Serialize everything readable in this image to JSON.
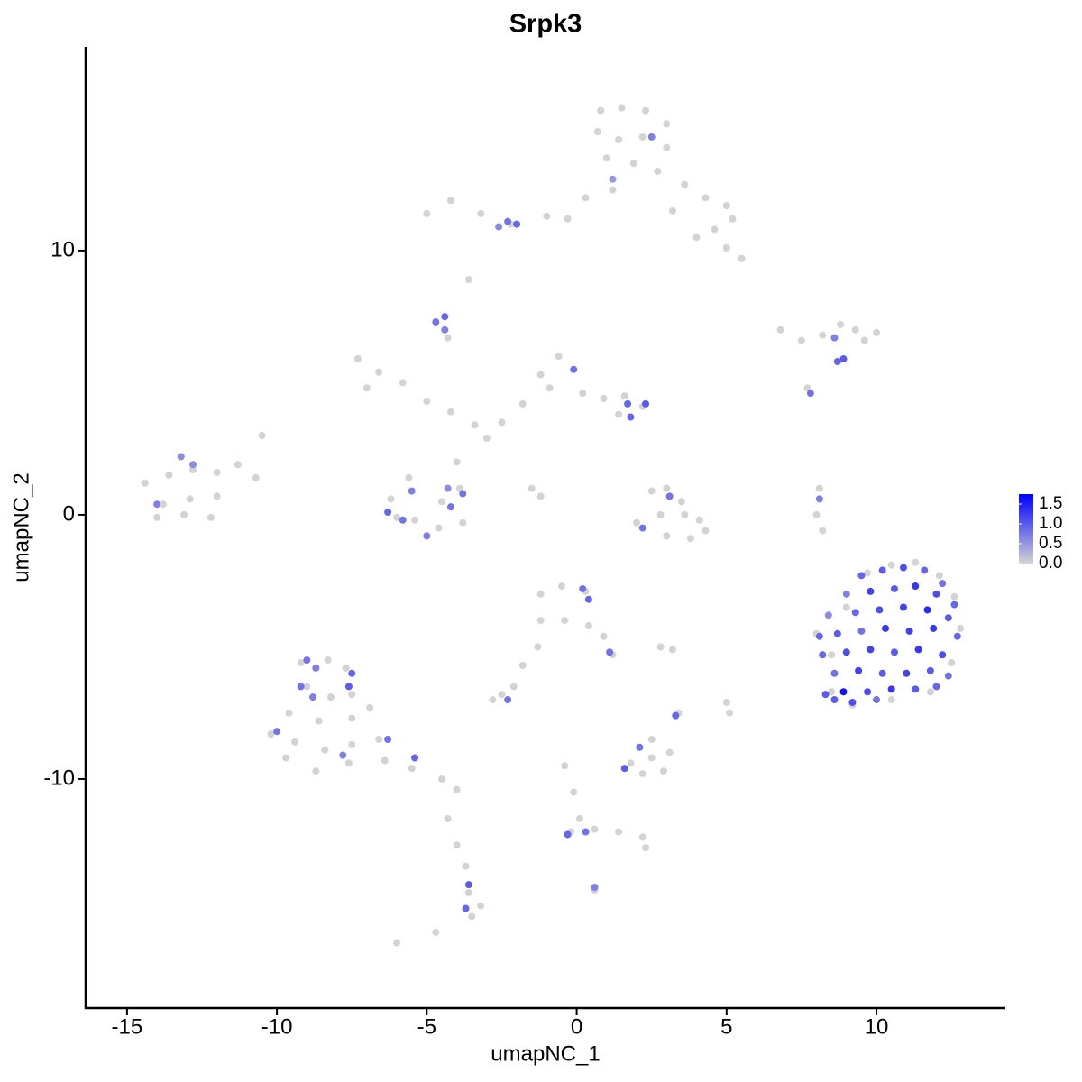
{
  "chart_data": {
    "type": "scatter",
    "title": "Srpk3",
    "xlabel": "umapNC_1",
    "ylabel": "umapNC_2",
    "xlim": [
      -16.38,
      14.3
    ],
    "ylim": [
      -18.67,
      17.71
    ],
    "xticks": [
      -15,
      -10,
      -5,
      0,
      5,
      10
    ],
    "yticks": [
      -10,
      0,
      10
    ],
    "low_color": "#d3d3d3",
    "high_color": "#0000ff",
    "clim": [
      0,
      1.75
    ],
    "cticks": [
      {
        "value": 0,
        "label": "0.0"
      },
      0.5,
      {
        "value": 1,
        "label": "1.0"
      },
      1.5
    ],
    "series": [
      {
        "x": [
          0.8,
          1.5,
          2.3,
          3.0,
          0.7,
          1.4,
          2.2,
          3.0,
          1.0,
          1.9,
          2.7,
          3.6,
          4.3,
          5.0,
          5.2,
          4.6,
          5.0,
          5.5,
          4.0,
          1.2,
          0.3,
          -1.0,
          -2.2,
          -3.2,
          -4.2,
          -5.0,
          3.2,
          -0.3,
          -3.6,
          -7.3,
          -6.6,
          -5.8,
          -7.0,
          -5.0,
          -4.2,
          -3.4,
          -3.0,
          -2.5,
          -1.8,
          -1.2,
          -0.6,
          -0.9,
          0.2,
          0.9,
          1.6,
          2.2,
          1.4,
          -4.3,
          -4.0,
          -3.9,
          -5.6,
          -6.2,
          -5.4,
          -4.6,
          -3.8,
          -4.5,
          -6.0,
          -1.5,
          -1.2,
          -14.4,
          -13.6,
          -12.8,
          -12.0,
          -11.3,
          -10.7,
          -13.8,
          -12.9,
          -12.0,
          -14.0,
          -13.1,
          -12.2,
          -10.5,
          2.5,
          3.0,
          3.5,
          2.8,
          3.6,
          4.1,
          2.0,
          3.0,
          3.8,
          4.3,
          6.8,
          7.5,
          8.2,
          8.8,
          9.3,
          10.0,
          9.6,
          7.7,
          8.1,
          8.0,
          8.2,
          8.0,
          8.5,
          9.0,
          9.7,
          10.5,
          11.3,
          12.1,
          12.6,
          12.8,
          12.5,
          11.8,
          10.5,
          9.2,
          8.5,
          -1.2,
          -0.5,
          0.3,
          -1.2,
          -0.4,
          0.4,
          0.9,
          1.2,
          -1.3,
          -1.8,
          -2.1,
          -2.5,
          -2.8,
          -9.2,
          -8.3,
          -7.7,
          -9.0,
          -8.2,
          -7.5,
          -9.6,
          -8.6,
          -7.5,
          -6.9,
          -10.2,
          -9.4,
          -8.4,
          -7.5,
          -6.6,
          -9.7,
          -8.7,
          -7.6,
          -6.4,
          -5.5,
          -4.5,
          -4.0,
          -4.3,
          -4.0,
          -3.7,
          -3.6,
          -3.2,
          -3.5,
          -6.0,
          -4.7,
          1.8,
          2.5,
          3.1,
          2.2,
          2.9,
          3.4,
          5.0,
          5.1,
          2.5,
          -0.4,
          -0.1,
          0.1,
          -0.2,
          0.6,
          1.4,
          2.2,
          2.3,
          0.6,
          2.8,
          3.2,
          2.5,
          1.2,
          -2.0,
          -2.3,
          -2.6,
          -4.4,
          -4.7,
          -4.4,
          -0.1,
          1.7,
          2.3,
          1.8,
          -5.5,
          -4.3,
          -3.8,
          -6.3,
          -5.8,
          -5.0,
          -4.2,
          -14.0,
          -13.2,
          -12.8,
          3.1,
          2.2,
          8.6,
          8.9,
          8.7,
          7.8,
          8.1,
          0.2,
          0.4,
          1.1,
          -2.3,
          -9.0,
          -8.7,
          -7.5,
          -7.6,
          -9.2,
          -8.8,
          -10.0,
          -7.8,
          -6.3,
          -5.4,
          -3.6,
          -3.7,
          0.3,
          -0.3,
          1.6,
          2.1,
          3.3,
          0.6,
          9.5,
          10.2,
          10.9,
          11.6,
          12.2,
          9.0,
          9.8,
          10.6,
          11.3,
          12.0,
          12.6,
          8.4,
          9.3,
          10.1,
          10.9,
          11.7,
          12.4,
          8.1,
          8.7,
          9.5,
          10.3,
          11.1,
          11.9,
          12.7,
          8.2,
          9.0,
          9.8,
          10.6,
          11.4,
          12.2,
          8.6,
          9.4,
          10.2,
          11.0,
          11.8,
          12.4,
          8.3,
          9.7,
          10.5,
          11.3,
          12.0,
          8.6,
          9.2,
          10.0,
          8.9
        ],
        "y": [
          15.3,
          15.4,
          15.3,
          14.8,
          14.5,
          14.2,
          14.3,
          13.9,
          13.5,
          13.3,
          13.0,
          12.5,
          12.0,
          11.7,
          11.2,
          10.8,
          10.1,
          9.7,
          10.5,
          12.3,
          12.0,
          11.3,
          11.0,
          11.4,
          11.9,
          11.4,
          11.5,
          11.2,
          8.9,
          5.9,
          5.4,
          5.0,
          4.8,
          4.3,
          3.9,
          3.4,
          2.9,
          3.5,
          4.2,
          5.3,
          6.0,
          4.8,
          4.6,
          4.4,
          4.5,
          4.1,
          3.8,
          6.7,
          2.0,
          1.0,
          1.4,
          0.6,
          -0.2,
          -0.5,
          -0.3,
          0.5,
          -0.1,
          1.0,
          0.7,
          1.2,
          1.5,
          1.7,
          1.6,
          1.9,
          1.4,
          0.4,
          0.6,
          0.7,
          -0.1,
          0.0,
          -0.1,
          3.0,
          0.9,
          1.0,
          0.5,
          0.0,
          0.0,
          -0.2,
          -0.3,
          -0.8,
          -0.9,
          -0.6,
          7.0,
          6.6,
          6.8,
          7.2,
          7.0,
          6.9,
          6.6,
          4.8,
          1.0,
          0.0,
          -0.6,
          -4.5,
          -5.3,
          -3.5,
          -2.2,
          -1.9,
          -1.8,
          -2.3,
          -3.1,
          -4.3,
          -5.6,
          -6.7,
          -7.0,
          -7.2,
          -6.7,
          -3.0,
          -2.7,
          -2.9,
          -4.0,
          -4.0,
          -4.2,
          -4.6,
          -5.3,
          -5.0,
          -5.7,
          -6.5,
          -6.8,
          -7.0,
          -5.6,
          -5.5,
          -5.8,
          -6.5,
          -6.9,
          -6.8,
          -7.5,
          -7.8,
          -7.7,
          -7.3,
          -8.3,
          -8.6,
          -8.9,
          -8.7,
          -8.5,
          -9.2,
          -9.7,
          -9.4,
          -9.3,
          -9.6,
          -10.0,
          -10.4,
          -11.5,
          -12.5,
          -13.3,
          -14.3,
          -14.8,
          -15.2,
          -16.2,
          -15.8,
          -9.4,
          -9.2,
          -9.0,
          -9.8,
          -9.7,
          -7.5,
          -7.1,
          -7.5,
          -8.5,
          -9.5,
          -10.5,
          -11.5,
          -12.0,
          -11.9,
          -12.0,
          -12.2,
          -12.6,
          -14.2,
          -5.0,
          -5.1,
          14.3,
          12.7,
          11.0,
          11.1,
          10.9,
          7.5,
          7.3,
          7.0,
          5.5,
          4.2,
          4.2,
          3.7,
          0.9,
          1.0,
          0.8,
          0.1,
          -0.2,
          -0.8,
          0.3,
          0.4,
          2.2,
          1.9,
          0.7,
          -0.5,
          6.7,
          5.9,
          5.8,
          4.6,
          0.6,
          -2.8,
          -3.2,
          -5.2,
          -7.0,
          -5.5,
          -5.8,
          -6.0,
          -6.5,
          -6.5,
          -6.9,
          -8.2,
          -9.1,
          -8.5,
          -9.2,
          -14.0,
          -14.9,
          -12.0,
          -12.1,
          -9.6,
          -8.8,
          -7.6,
          -14.1,
          -2.3,
          -2.1,
          -2.0,
          -2.1,
          -2.6,
          -3.0,
          -2.9,
          -2.8,
          -2.7,
          -3.0,
          -3.4,
          -3.8,
          -3.7,
          -3.6,
          -3.5,
          -3.6,
          -3.9,
          -4.6,
          -4.5,
          -4.4,
          -4.3,
          -4.4,
          -4.3,
          -4.6,
          -5.3,
          -5.2,
          -5.1,
          -5.2,
          -5.1,
          -5.3,
          -6.0,
          -5.9,
          -6.0,
          -6.0,
          -5.9,
          -6.1,
          -6.8,
          -6.7,
          -6.6,
          -6.6,
          -6.5,
          -7.0,
          -7.1,
          -7.0,
          -6.7
        ],
        "values": [
          0,
          0,
          0,
          0,
          0,
          0,
          0,
          0,
          0,
          0,
          0,
          0,
          0,
          0,
          0,
          0,
          0,
          0,
          0,
          0,
          0,
          0,
          0,
          0,
          0,
          0,
          0,
          0,
          0,
          0,
          0,
          0,
          0,
          0,
          0,
          0,
          0,
          0,
          0,
          0,
          0,
          0,
          0,
          0,
          0,
          0,
          0,
          0,
          0,
          0,
          0,
          0,
          0,
          0,
          0,
          0,
          0,
          0,
          0,
          0,
          0,
          0,
          0,
          0,
          0,
          0,
          0,
          0,
          0,
          0,
          0,
          0,
          0,
          0,
          0,
          0,
          0,
          0,
          0,
          0,
          0,
          0,
          0,
          0,
          0,
          0,
          0,
          0,
          0,
          0,
          0,
          0,
          0,
          0,
          0,
          0,
          0,
          0,
          0,
          0,
          0,
          0,
          0,
          0,
          0,
          0,
          0,
          0,
          0,
          0,
          0,
          0,
          0,
          0,
          0,
          0,
          0,
          0,
          0,
          0,
          0,
          0,
          0,
          0,
          0,
          0,
          0,
          0,
          0,
          0,
          0,
          0,
          0,
          0,
          0,
          0,
          0,
          0,
          0,
          0,
          0,
          0,
          0,
          0,
          0,
          0,
          0,
          0,
          0,
          0,
          0,
          0,
          0,
          0,
          0,
          0,
          0,
          0,
          0,
          0,
          0,
          0,
          0,
          0,
          0,
          0,
          0,
          0,
          0,
          0,
          0.7,
          0.5,
          0.9,
          0.8,
          0.6,
          0.9,
          0.8,
          0.7,
          0.8,
          0.9,
          1.0,
          0.9,
          0.7,
          0.6,
          0.8,
          0.9,
          0.8,
          0.7,
          0.8,
          0.7,
          0.6,
          0.6,
          0.8,
          0.8,
          0.7,
          1.0,
          0.9,
          0.8,
          0.7,
          0.8,
          0.9,
          0.8,
          0.8,
          0.8,
          0.7,
          0.9,
          1.0,
          0.8,
          0.7,
          0.8,
          0.7,
          0.8,
          0.9,
          1.0,
          0.9,
          0.8,
          0.9,
          1.0,
          0.8,
          0.9,
          0.7,
          0.9,
          1.0,
          1.1,
          0.9,
          0.8,
          0.7,
          1.2,
          1.0,
          1.3,
          1.1,
          0.9,
          0.6,
          0.9,
          1.1,
          1.2,
          1.4,
          1.0,
          0.9,
          1.0,
          0.8,
          1.3,
          1.2,
          1.3,
          0.9,
          0.9,
          1.1,
          1.2,
          1.0,
          1.3,
          1.1,
          0.8,
          1.2,
          1.0,
          1.2,
          1.0,
          0.8,
          1.0,
          1.1,
          1.3,
          1.0,
          0.9,
          1.0,
          1.1,
          0.8,
          1.6
        ]
      }
    ]
  }
}
